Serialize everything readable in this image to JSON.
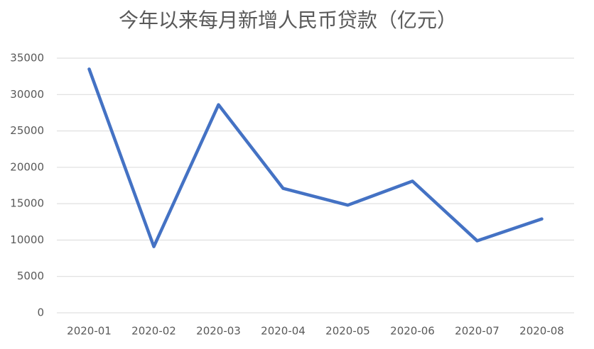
{
  "chart_data": {
    "type": "line",
    "title": "今年以来每月新增人民币贷款（亿元）",
    "categories": [
      "2020-01",
      "2020-02",
      "2020-03",
      "2020-04",
      "2020-05",
      "2020-06",
      "2020-07",
      "2020-08"
    ],
    "values": [
      33500,
      9100,
      28600,
      17100,
      14800,
      18100,
      9900,
      12900
    ],
    "color": "#4472c4",
    "ylim": [
      0,
      35000
    ],
    "yticks": [
      0,
      5000,
      10000,
      15000,
      20000,
      25000,
      30000,
      35000
    ],
    "grid": true
  }
}
